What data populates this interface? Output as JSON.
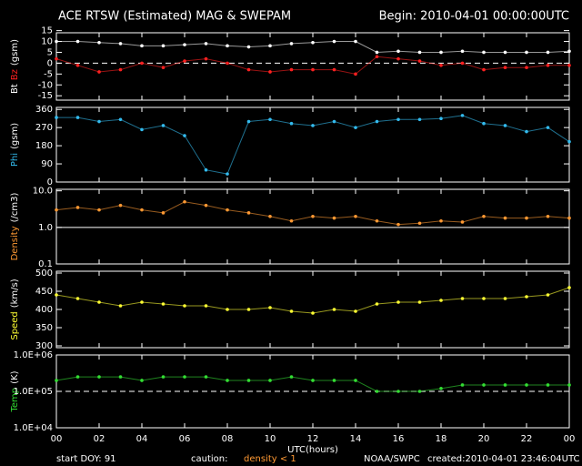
{
  "title": "ACE RTSW (Estimated) MAG & SWEPAM",
  "begin": "Begin: 2010-04-01 00:00:00UTC",
  "x_axis": {
    "label": "UTC(hours)",
    "xlim": [
      0,
      24
    ],
    "xticks": [
      {
        "value": 0,
        "label": "00"
      },
      {
        "value": 2,
        "label": "02"
      },
      {
        "value": 4,
        "label": "04"
      },
      {
        "value": 6,
        "label": "06"
      },
      {
        "value": 8,
        "label": "08"
      },
      10,
      12,
      14,
      16,
      18,
      20,
      22,
      {
        "value": 24,
        "label": "00"
      }
    ],
    "x": [
      0,
      1,
      2,
      3,
      4,
      5,
      6,
      7,
      8,
      9,
      10,
      11,
      12,
      13,
      14,
      15,
      16,
      17,
      18,
      19,
      20,
      21,
      22,
      23,
      24
    ]
  },
  "footer": {
    "doy": "start DOY:  91",
    "caution": "caution:",
    "density_note": "density < 1",
    "source": "NOAA/SWPC",
    "created": "created:2010-04-01 23:46:04UTC"
  },
  "chart_data": [
    {
      "type": "scatter",
      "ylabel": [
        {
          "text": "Bt",
          "color": "#ffffff"
        },
        {
          "text": "Bz",
          "color": "#ff2020"
        },
        {
          "text": "(gsm)",
          "color": "#ffffff"
        }
      ],
      "ylim": [
        -17,
        14
      ],
      "yticks": [
        15,
        10,
        5,
        0,
        -5,
        -10,
        -15
      ],
      "ref_line": {
        "value": 0,
        "dashed": true
      },
      "series": [
        {
          "name": "Bt",
          "color": "#ffffff",
          "values": [
            10,
            10,
            9.5,
            9,
            8,
            8,
            8.5,
            9,
            8,
            7.5,
            8,
            9,
            9.5,
            10,
            10,
            5,
            5.5,
            5,
            5,
            5.5,
            5,
            5,
            5,
            5,
            5.5
          ]
        },
        {
          "name": "Bz",
          "color": "#ff2020",
          "values": [
            2,
            -1,
            -4,
            -3,
            0,
            -2,
            1,
            2,
            0,
            -3,
            -4,
            -3,
            -3,
            -3,
            -5,
            3,
            2,
            1,
            -1,
            0,
            -3,
            -2,
            -2,
            -1,
            -1
          ]
        }
      ]
    },
    {
      "type": "scatter",
      "ylabel": [
        {
          "text": "Phi",
          "color": "#33bbee"
        },
        {
          "text": "(gsm)",
          "color": "#ffffff"
        }
      ],
      "ylim": [
        0,
        370
      ],
      "yticks": [
        0,
        90,
        180,
        270,
        360
      ],
      "series": [
        {
          "name": "Phi",
          "color": "#33bbee",
          "values": [
            320,
            320,
            300,
            310,
            260,
            280,
            230,
            60,
            40,
            300,
            310,
            290,
            280,
            300,
            270,
            300,
            310,
            310,
            315,
            330,
            290,
            280,
            250,
            270,
            200
          ]
        }
      ]
    },
    {
      "type": "scatter",
      "log": true,
      "ylabel": [
        {
          "text": "Density",
          "color": "#ff9933"
        },
        {
          "text": "(/cm3)",
          "color": "#ffffff"
        }
      ],
      "ylim": [
        0.1,
        11
      ],
      "yticks": [
        {
          "value": 0.1,
          "label": "0.1"
        },
        {
          "value": 1,
          "label": "1.0"
        },
        {
          "value": 10,
          "label": "10.0"
        }
      ],
      "ref_line": {
        "value": 1,
        "dashed": false
      },
      "series": [
        {
          "name": "Density",
          "color": "#ff9933",
          "values": [
            3,
            3.5,
            3,
            4,
            3,
            2.5,
            5,
            4,
            3,
            2.5,
            2,
            1.5,
            2,
            1.8,
            2,
            1.5,
            1.2,
            1.3,
            1.5,
            1.4,
            2,
            1.8,
            1.8,
            2,
            1.8
          ]
        }
      ]
    },
    {
      "type": "scatter",
      "ylabel": [
        {
          "text": "Speed",
          "color": "#ffff33"
        },
        {
          "text": "(km/s)",
          "color": "#ffffff"
        }
      ],
      "ylim": [
        295,
        505
      ],
      "yticks": [
        300,
        350,
        400,
        450,
        500
      ],
      "series": [
        {
          "name": "Speed",
          "color": "#ffff33",
          "values": [
            440,
            430,
            420,
            410,
            420,
            415,
            410,
            410,
            400,
            400,
            405,
            395,
            390,
            400,
            395,
            415,
            420,
            420,
            425,
            430,
            430,
            430,
            435,
            440,
            460
          ]
        }
      ]
    },
    {
      "type": "scatter",
      "log": true,
      "ylabel": [
        {
          "text": "Temp",
          "color": "#33dd33"
        },
        {
          "text": "(K)",
          "color": "#ffffff"
        }
      ],
      "ylim": [
        10000,
        1000000
      ],
      "yticks": [
        {
          "value": 10000,
          "label": "1.0E+04"
        },
        {
          "value": 100000,
          "label": "1.0E+05"
        },
        {
          "value": 1000000,
          "label": "1.0E+06"
        }
      ],
      "ref_line": {
        "value": 100000,
        "dashed": true
      },
      "series": [
        {
          "name": "Temp",
          "color": "#33dd33",
          "values": [
            200000,
            250000,
            250000,
            250000,
            200000,
            250000,
            250000,
            250000,
            200000,
            200000,
            200000,
            250000,
            200000,
            200000,
            200000,
            100000,
            100000,
            100000,
            120000,
            150000,
            150000,
            150000,
            150000,
            150000,
            150000
          ]
        }
      ]
    }
  ]
}
